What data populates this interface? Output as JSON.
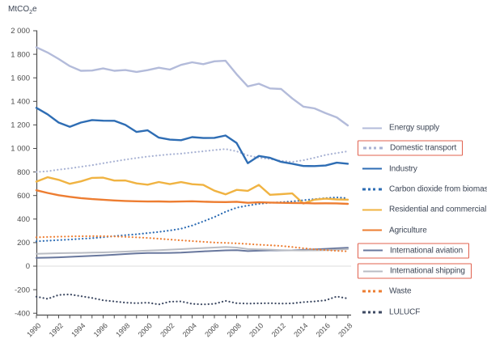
{
  "figure": {
    "ylabel_prefix": "MtCO",
    "ylabel_sub": "2",
    "ylabel_suffix": "e"
  },
  "chart_data": {
    "type": "line",
    "title": "",
    "ylabel": "MtCO2e",
    "xlabel": "",
    "xlim": [
      1990,
      2018
    ],
    "ylim": [
      -420,
      2000
    ],
    "grid": "zero line only",
    "legend_position": "right",
    "highlight_box_color": "#e0604e",
    "x": [
      1990,
      1991,
      1992,
      1993,
      1994,
      1995,
      1996,
      1997,
      1998,
      1999,
      2000,
      2001,
      2002,
      2003,
      2004,
      2005,
      2006,
      2007,
      2008,
      2009,
      2010,
      2011,
      2012,
      2013,
      2014,
      2015,
      2016,
      2017,
      2018
    ],
    "x_tick_labels": [
      "1990",
      "1992",
      "1994",
      "1996",
      "1998",
      "2000",
      "2002",
      "2004",
      "2006",
      "2008",
      "2010",
      "2012",
      "2014",
      "2016",
      "2018"
    ],
    "y_tick_values": [
      2000,
      1800,
      1600,
      1400,
      1200,
      1000,
      800,
      600,
      400,
      200,
      0,
      -200,
      -400
    ],
    "y_tick_labels": [
      "2 000",
      "1 800",
      "1 600",
      "1 400",
      "1 200",
      "1 000",
      "800",
      "600",
      "400",
      "200",
      "0",
      "-200",
      "-400"
    ],
    "series": [
      {
        "id": "energy-supply",
        "name": "Energy supply",
        "color": "#b3bbda",
        "style": "solid",
        "line_width": 2.4,
        "boxed": false,
        "values": [
          1860,
          1815,
          1760,
          1700,
          1660,
          1662,
          1680,
          1660,
          1666,
          1650,
          1665,
          1686,
          1670,
          1710,
          1732,
          1716,
          1740,
          1745,
          1630,
          1527,
          1550,
          1510,
          1505,
          1425,
          1355,
          1340,
          1300,
          1264,
          1195
        ]
      },
      {
        "id": "domestic-transport",
        "name": "Domestic transport",
        "color": "#a9b3d4",
        "style": "dotted",
        "line_width": 2.2,
        "boxed": true,
        "values": [
          800,
          806,
          820,
          831,
          845,
          858,
          874,
          890,
          905,
          919,
          931,
          941,
          950,
          956,
          966,
          976,
          986,
          995,
          976,
          941,
          921,
          910,
          895,
          886,
          900,
          921,
          945,
          961,
          976
        ]
      },
      {
        "id": "industry",
        "name": "Industry",
        "color": "#2e6db4",
        "style": "solid",
        "line_width": 2.4,
        "boxed": false,
        "values": [
          1345,
          1290,
          1220,
          1184,
          1220,
          1241,
          1236,
          1235,
          1200,
          1140,
          1154,
          1092,
          1075,
          1070,
          1096,
          1089,
          1090,
          1110,
          1046,
          875,
          936,
          920,
          886,
          870,
          851,
          850,
          855,
          879,
          870
        ]
      },
      {
        "id": "carbon-dioxide-from-biomass",
        "name": "Carbon dioxide from biomass",
        "color": "#2e6db4",
        "style": "dotted",
        "line_width": 2.2,
        "boxed": false,
        "values": [
          211,
          216,
          221,
          226,
          232,
          238,
          246,
          255,
          263,
          271,
          281,
          291,
          303,
          318,
          345,
          380,
          417,
          462,
          497,
          515,
          530,
          538,
          543,
          550,
          560,
          570,
          578,
          584,
          577
        ]
      },
      {
        "id": "residential-and-commercial",
        "name": "Residential and commercial",
        "color": "#f0b342",
        "style": "solid",
        "line_width": 2.4,
        "boxed": false,
        "values": [
          718,
          755,
          733,
          700,
          720,
          750,
          752,
          727,
          728,
          703,
          692,
          715,
          697,
          714,
          696,
          690,
          641,
          610,
          648,
          640,
          690,
          606,
          612,
          618,
          532,
          565,
          573,
          567,
          565
        ]
      },
      {
        "id": "agriculture",
        "name": "Agriculture",
        "color": "#ed7d31",
        "style": "solid",
        "line_width": 2.4,
        "boxed": false,
        "values": [
          645,
          622,
          603,
          589,
          578,
          570,
          564,
          558,
          554,
          551,
          549,
          550,
          548,
          549,
          551,
          548,
          545,
          544,
          547,
          538,
          542,
          540,
          538,
          537,
          536,
          533,
          534,
          533,
          529
        ]
      },
      {
        "id": "international-aviation",
        "name": "International aviation",
        "color": "#68779d",
        "style": "solid",
        "line_width": 2,
        "boxed": true,
        "values": [
          70,
          72,
          75,
          79,
          83,
          87,
          92,
          97,
          103,
          108,
          112,
          112,
          113,
          115,
          120,
          126,
          130,
          134,
          136,
          128,
          131,
          134,
          134,
          135,
          138,
          142,
          147,
          152,
          156
        ]
      },
      {
        "id": "international-shipping",
        "name": "International shipping",
        "color": "#b9bcc3",
        "style": "solid",
        "line_width": 2,
        "boxed": true,
        "values": [
          105,
          107,
          110,
          112,
          113,
          115,
          117,
          120,
          124,
          128,
          132,
          136,
          140,
          144,
          150,
          154,
          158,
          162,
          158,
          145,
          142,
          140,
          136,
          134,
          133,
          134,
          136,
          140,
          145
        ]
      },
      {
        "id": "waste",
        "name": "Waste",
        "color": "#ed7d31",
        "style": "dotted",
        "line_width": 2.2,
        "boxed": false,
        "values": [
          245,
          248,
          250,
          252,
          254,
          255,
          254,
          252,
          249,
          245,
          240,
          233,
          226,
          219,
          213,
          207,
          201,
          198,
          194,
          188,
          182,
          177,
          172,
          163,
          152,
          143,
          136,
          130,
          126
        ]
      },
      {
        "id": "lulucf",
        "name": "LULUCF",
        "color": "#3e4a63",
        "style": "dotted",
        "line_width": 2.2,
        "boxed": false,
        "values": [
          -259,
          -278,
          -245,
          -240,
          -255,
          -270,
          -290,
          -300,
          -310,
          -315,
          -310,
          -325,
          -302,
          -300,
          -320,
          -325,
          -320,
          -295,
          -315,
          -318,
          -316,
          -315,
          -318,
          -316,
          -306,
          -300,
          -290,
          -258,
          -275
        ]
      }
    ]
  }
}
